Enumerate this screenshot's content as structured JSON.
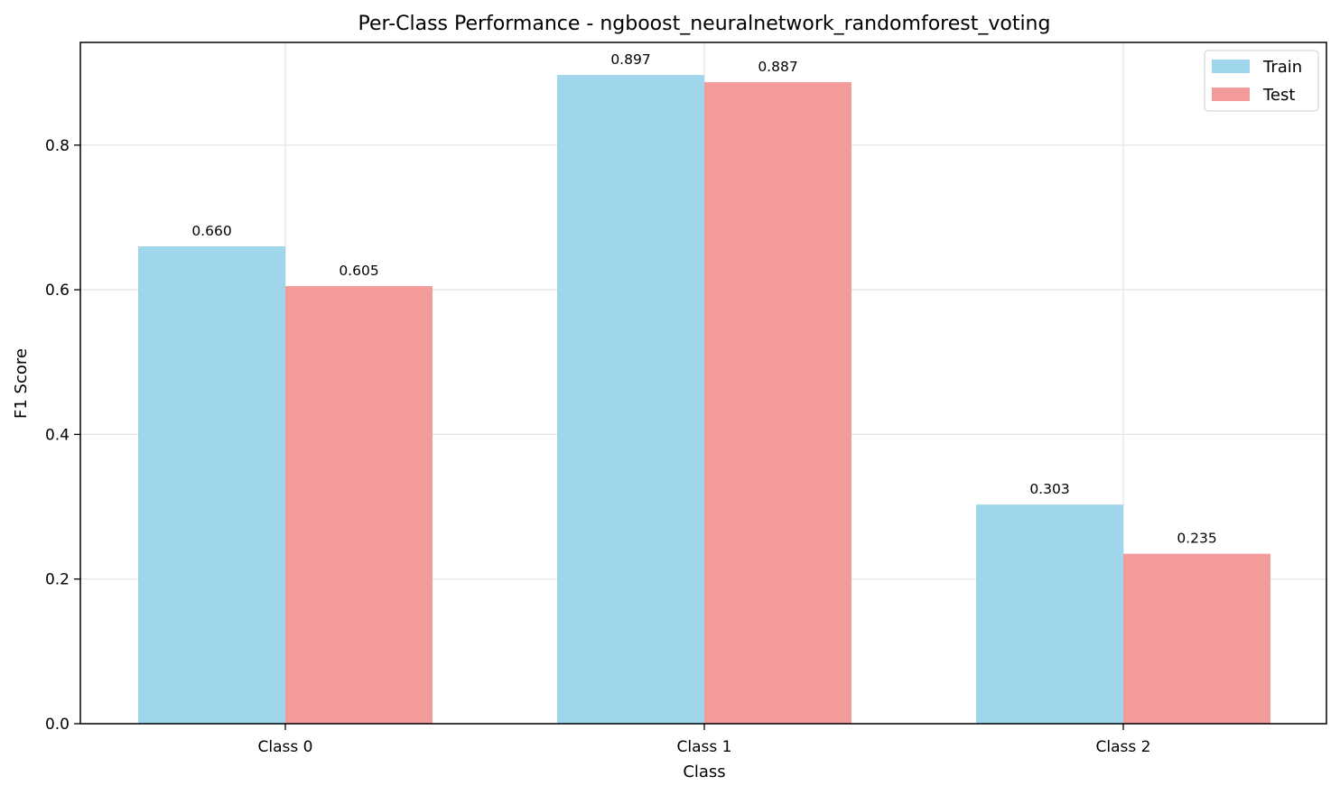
{
  "chart_data": {
    "type": "bar",
    "title": "Per-Class Performance - ngboost_neuralnetwork_randomforest_voting",
    "xlabel": "Class",
    "ylabel": "F1 Score",
    "categories": [
      "Class 0",
      "Class 1",
      "Class 2"
    ],
    "series": [
      {
        "name": "Train",
        "values": [
          0.66,
          0.897,
          0.303
        ],
        "labels": [
          "0.660",
          "0.897",
          "0.303"
        ],
        "color": "#a0d6ec"
      },
      {
        "name": "Test",
        "values": [
          0.605,
          0.887,
          0.235
        ],
        "labels": [
          "0.605",
          "0.887",
          "0.235"
        ],
        "color": "#f39a9a"
      }
    ],
    "ylim": [
      0,
      0.942
    ],
    "yticks": [
      0.0,
      0.2,
      0.4,
      0.6,
      0.8
    ],
    "ytick_labels": [
      "0.0",
      "0.2",
      "0.4",
      "0.6",
      "0.8"
    ],
    "grid": true,
    "legend": "top-right"
  }
}
